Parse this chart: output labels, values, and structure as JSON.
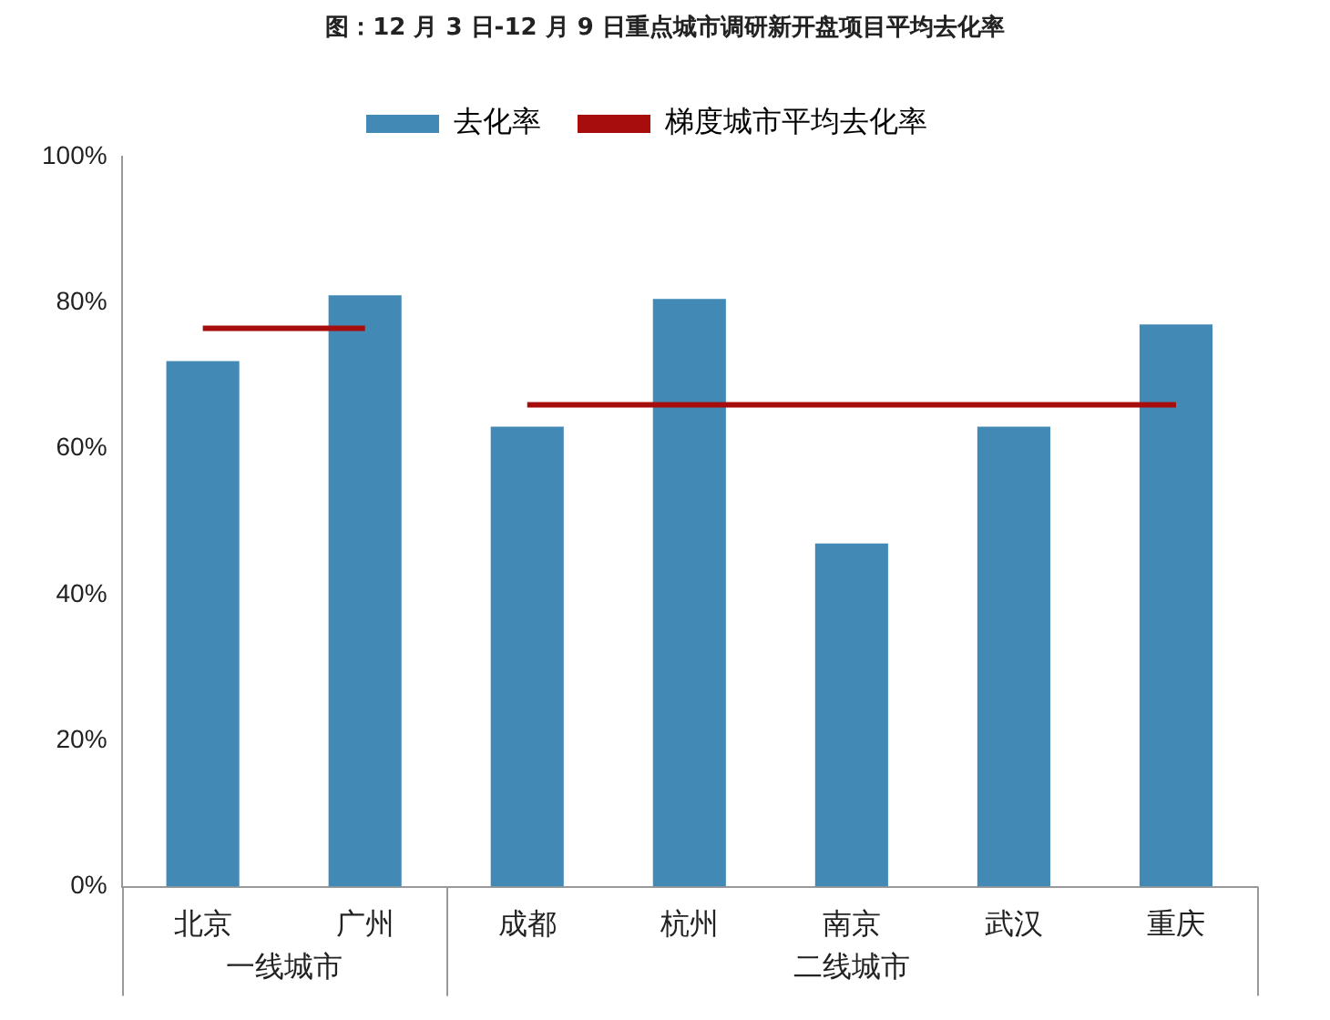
{
  "chart_data": {
    "type": "bar",
    "title": "图：12 月 3 日-12 月 9 日重点城市调研新开盘项目平均去化率",
    "categories": [
      "北京",
      "广州",
      "成都",
      "杭州",
      "南京",
      "武汉",
      "重庆"
    ],
    "series": [
      {
        "name": "去化率",
        "color": "#428ab5",
        "values": [
          72,
          81,
          63,
          80.5,
          47,
          63,
          77
        ]
      },
      {
        "name": "梯度城市平均去化率",
        "type": "line",
        "color": "#a80d0d",
        "values": [
          76.5,
          76.5,
          null,
          null,
          null,
          null,
          null
        ]
      },
      {
        "type": "line",
        "color": "#a80d0d",
        "values": [
          null,
          null,
          66,
          66,
          66,
          66,
          66
        ]
      }
    ],
    "ylim": [
      0,
      100
    ],
    "yticks": [
      {
        "value": 0,
        "label": "0%"
      },
      {
        "value": 20,
        "label": "20%"
      },
      {
        "value": 40,
        "label": "40%"
      },
      {
        "value": 60,
        "label": "60%"
      },
      {
        "value": 80,
        "label": "80%"
      },
      {
        "value": 100,
        "label": "100%"
      }
    ],
    "annotations": [
      "一线城市",
      "二线城市"
    ],
    "grid": false,
    "legend": "top",
    "marker": "none"
  }
}
